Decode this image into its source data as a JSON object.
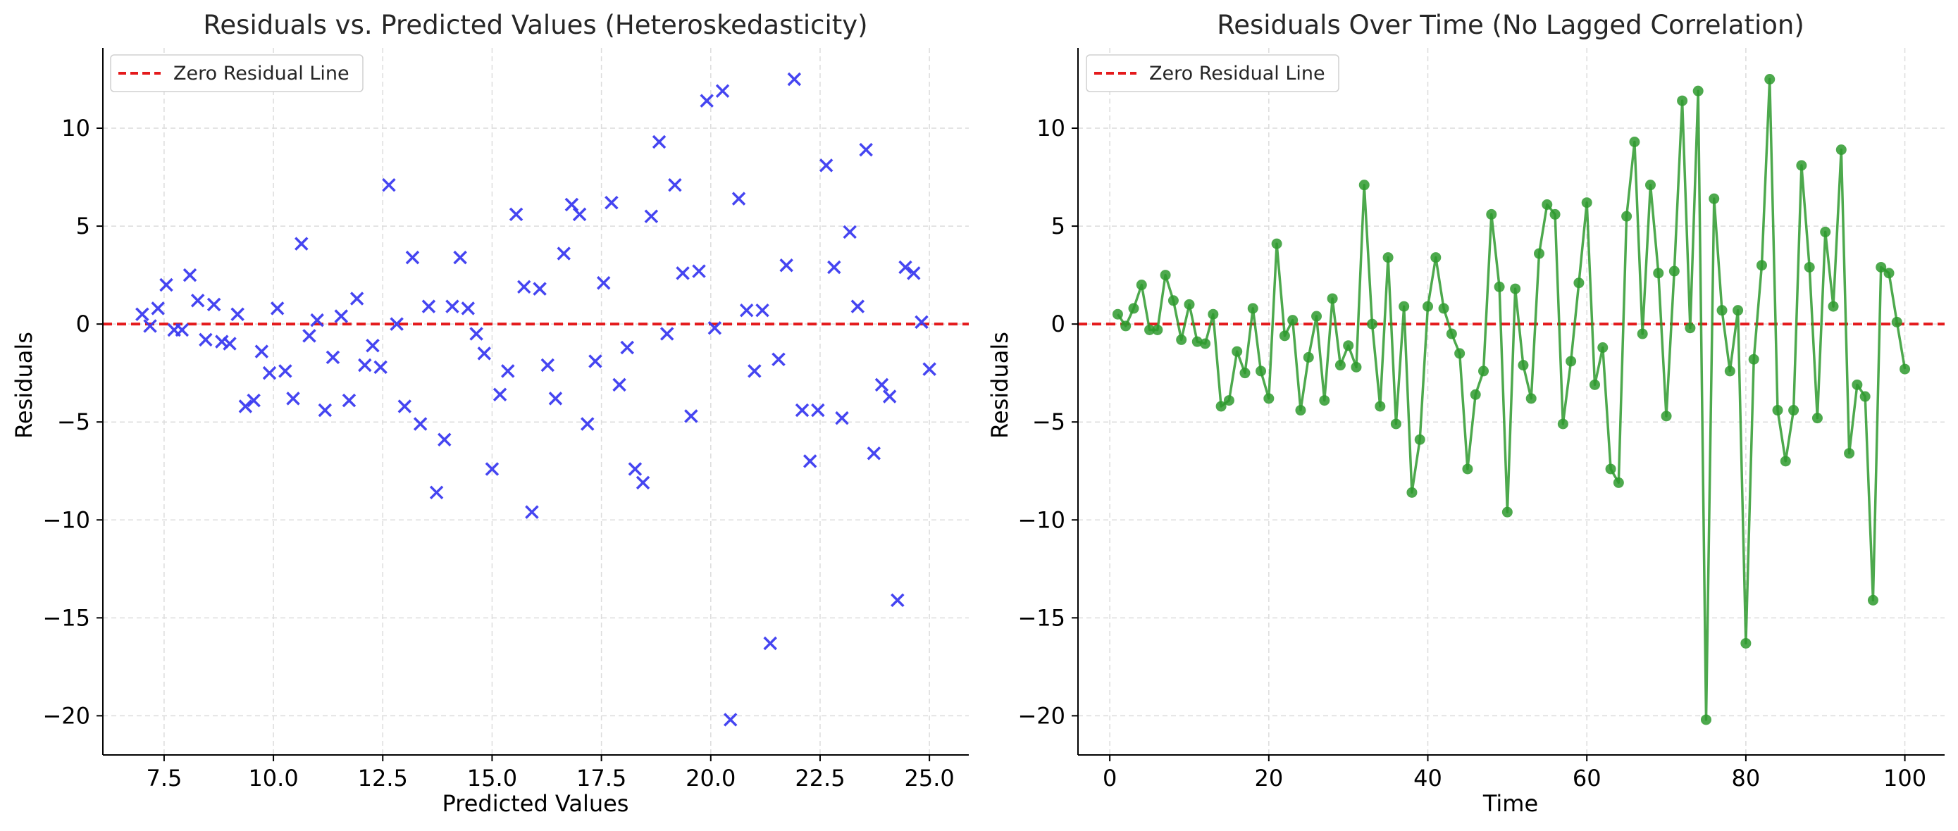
{
  "chart_data": [
    {
      "type": "scatter",
      "title": "Residuals vs. Predicted Values (Heteroskedasticity)",
      "xlabel": "Predicted Values",
      "ylabel": "Residuals",
      "xlim": [
        6.1,
        25.9
      ],
      "ylim": [
        -22,
        14.1
      ],
      "xticks": [
        7.5,
        10.0,
        12.5,
        15.0,
        17.5,
        20.0,
        22.5,
        25.0
      ],
      "xtick_labels": [
        "7.5",
        "10.0",
        "12.5",
        "15.0",
        "17.5",
        "20.0",
        "22.5",
        "25.0"
      ],
      "yticks": [
        10,
        5,
        0,
        -5,
        -10,
        -15,
        -20
      ],
      "ytick_labels": [
        "10",
        "5",
        "0",
        "−5",
        "−10",
        "−15",
        "−20"
      ],
      "grid": true,
      "legend_position": "top-left",
      "marker": "x",
      "marker_color": "#3b3bf0",
      "reference_line": {
        "y": 0,
        "label": "Zero Residual Line",
        "color": "#e41a1c",
        "style": "dashed"
      },
      "series": [
        {
          "x": [
            7.0,
            7.18,
            7.36,
            7.55,
            7.73,
            7.91,
            8.09,
            8.27,
            8.45,
            8.64,
            8.82,
            9.0,
            9.18,
            9.36,
            9.55,
            9.73,
            9.91,
            10.09,
            10.27,
            10.45,
            10.64,
            10.82,
            11.0,
            11.18,
            11.36,
            11.55,
            11.73,
            11.91,
            12.09,
            12.27,
            12.45,
            12.64,
            12.82,
            13.0,
            13.18,
            13.36,
            13.55,
            13.73,
            13.91,
            14.09,
            14.27,
            14.45,
            14.64,
            14.82,
            15.0,
            15.18,
            15.36,
            15.55,
            15.73,
            15.91,
            16.09,
            16.27,
            16.45,
            16.64,
            16.82,
            17.0,
            17.18,
            17.36,
            17.55,
            17.73,
            17.91,
            18.09,
            18.27,
            18.45,
            18.64,
            18.82,
            19.0,
            19.18,
            19.36,
            19.55,
            19.73,
            19.91,
            20.09,
            20.27,
            20.45,
            20.64,
            20.82,
            21.0,
            21.18,
            21.36,
            21.55,
            21.73,
            21.91,
            22.09,
            22.27,
            22.45,
            22.64,
            22.82,
            23.0,
            23.18,
            23.36,
            23.55,
            23.73,
            23.91,
            24.09,
            24.27,
            24.45,
            24.64,
            24.82,
            25.0
          ],
          "y": [
            0.5,
            -0.1,
            0.8,
            2.0,
            -0.3,
            -0.3,
            2.5,
            1.2,
            -0.8,
            1.0,
            -0.9,
            -1.0,
            0.5,
            -4.2,
            -3.9,
            -1.4,
            -2.5,
            0.8,
            -2.4,
            -3.8,
            4.1,
            -0.6,
            0.2,
            -4.4,
            -1.7,
            0.4,
            -3.9,
            1.3,
            -2.1,
            -1.1,
            -2.2,
            7.1,
            0.0,
            -4.2,
            3.4,
            -5.1,
            0.9,
            -8.6,
            -5.9,
            0.9,
            3.4,
            0.8,
            -0.5,
            -1.5,
            -7.4,
            -3.6,
            -2.4,
            5.6,
            1.9,
            -9.6,
            1.8,
            -2.1,
            -3.8,
            3.6,
            6.1,
            5.6,
            -5.1,
            -1.9,
            2.1,
            6.2,
            -3.1,
            -1.2,
            -7.4,
            -8.1,
            5.5,
            9.3,
            -0.5,
            7.1,
            2.6,
            -4.7,
            2.7,
            11.4,
            -0.2,
            11.9,
            -20.2,
            6.4,
            0.7,
            -2.4,
            0.7,
            -16.3,
            -1.8,
            3.0,
            12.5,
            -4.4,
            -7.0,
            -4.4,
            8.1,
            2.9,
            -4.8,
            4.7,
            0.9,
            8.9,
            -6.6,
            -3.1,
            -3.7,
            -14.1,
            2.9,
            2.6,
            0.1,
            -2.3
          ]
        }
      ]
    },
    {
      "type": "line",
      "title": "Residuals Over Time (No Lagged Correlation)",
      "xlabel": "Time",
      "ylabel": "Residuals",
      "xlim": [
        -4,
        105
      ],
      "ylim": [
        -22,
        14.1
      ],
      "xticks": [
        0,
        20,
        40,
        60,
        80,
        100
      ],
      "xtick_labels": [
        "0",
        "20",
        "40",
        "60",
        "80",
        "100"
      ],
      "yticks": [
        10,
        5,
        0,
        -5,
        -10,
        -15,
        -20
      ],
      "ytick_labels": [
        "10",
        "5",
        "0",
        "−5",
        "−10",
        "−15",
        "−20"
      ],
      "grid": true,
      "legend_position": "top-left",
      "marker": "o",
      "line_color": "#2e9a2e",
      "reference_line": {
        "y": 0,
        "label": "Zero Residual Line",
        "color": "#e41a1c",
        "style": "dashed"
      },
      "series": [
        {
          "x": [
            1,
            2,
            3,
            4,
            5,
            6,
            7,
            8,
            9,
            10,
            11,
            12,
            13,
            14,
            15,
            16,
            17,
            18,
            19,
            20,
            21,
            22,
            23,
            24,
            25,
            26,
            27,
            28,
            29,
            30,
            31,
            32,
            33,
            34,
            35,
            36,
            37,
            38,
            39,
            40,
            41,
            42,
            43,
            44,
            45,
            46,
            47,
            48,
            49,
            50,
            51,
            52,
            53,
            54,
            55,
            56,
            57,
            58,
            59,
            60,
            61,
            62,
            63,
            64,
            65,
            66,
            67,
            68,
            69,
            70,
            71,
            72,
            73,
            74,
            75,
            76,
            77,
            78,
            79,
            80,
            81,
            82,
            83,
            84,
            85,
            86,
            87,
            88,
            89,
            90,
            91,
            92,
            93,
            94,
            95,
            96,
            97,
            98,
            99,
            100
          ],
          "y": [
            0.5,
            -0.1,
            0.8,
            2.0,
            -0.3,
            -0.3,
            2.5,
            1.2,
            -0.8,
            1.0,
            -0.9,
            -1.0,
            0.5,
            -4.2,
            -3.9,
            -1.4,
            -2.5,
            0.8,
            -2.4,
            -3.8,
            4.1,
            -0.6,
            0.2,
            -4.4,
            -1.7,
            0.4,
            -3.9,
            1.3,
            -2.1,
            -1.1,
            -2.2,
            7.1,
            0.0,
            -4.2,
            3.4,
            -5.1,
            0.9,
            -8.6,
            -5.9,
            0.9,
            3.4,
            0.8,
            -0.5,
            -1.5,
            -7.4,
            -3.6,
            -2.4,
            5.6,
            1.9,
            -9.6,
            1.8,
            -2.1,
            -3.8,
            3.6,
            6.1,
            5.6,
            -5.1,
            -1.9,
            2.1,
            6.2,
            -3.1,
            -1.2,
            -7.4,
            -8.1,
            5.5,
            9.3,
            -0.5,
            7.1,
            2.6,
            -4.7,
            2.7,
            11.4,
            -0.2,
            11.9,
            -20.2,
            6.4,
            0.7,
            -2.4,
            0.7,
            -16.3,
            -1.8,
            3.0,
            12.5,
            -4.4,
            -7.0,
            -4.4,
            8.1,
            2.9,
            -4.8,
            4.7,
            0.9,
            8.9,
            -6.6,
            -3.1,
            -3.7,
            -14.1,
            2.9,
            2.6,
            0.1,
            -2.3
          ]
        }
      ]
    }
  ]
}
